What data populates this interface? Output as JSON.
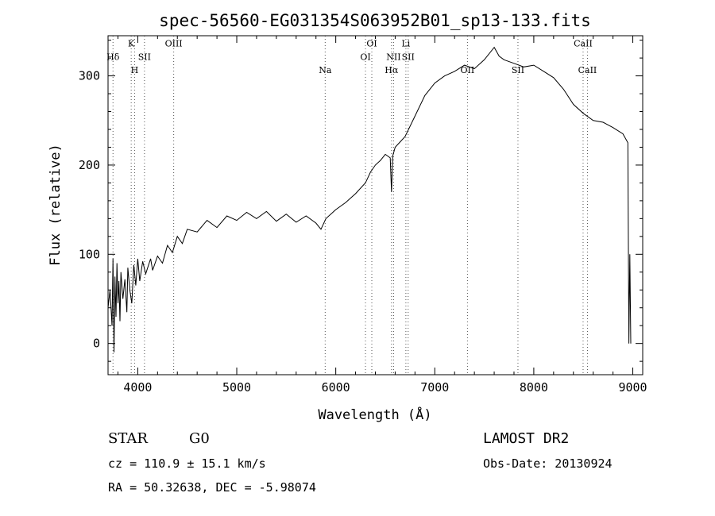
{
  "chart_data": {
    "type": "line",
    "title": "spec-56560-EG031354S063952B01_sp13-133.fits",
    "xlabel": "Wavelength (Å)",
    "ylabel": "Flux (relative)",
    "xlim": [
      3700,
      9100
    ],
    "ylim": [
      -35,
      345
    ],
    "xticks": [
      4000,
      5000,
      6000,
      7000,
      8000,
      9000
    ],
    "yticks": [
      0,
      100,
      200,
      300
    ],
    "grid": false,
    "series": [
      {
        "points": [
          [
            3700,
            40
          ],
          [
            3720,
            60
          ],
          [
            3740,
            20
          ],
          [
            3750,
            95
          ],
          [
            3760,
            -10
          ],
          [
            3770,
            75
          ],
          [
            3780,
            30
          ],
          [
            3790,
            90
          ],
          [
            3800,
            45
          ],
          [
            3810,
            70
          ],
          [
            3820,
            25
          ],
          [
            3830,
            80
          ],
          [
            3850,
            50
          ],
          [
            3870,
            72
          ],
          [
            3890,
            35
          ],
          [
            3900,
            85
          ],
          [
            3920,
            60
          ],
          [
            3940,
            45
          ],
          [
            3960,
            88
          ],
          [
            3980,
            65
          ],
          [
            4000,
            95
          ],
          [
            4020,
            70
          ],
          [
            4050,
            92
          ],
          [
            4080,
            78
          ],
          [
            4100,
            85
          ],
          [
            4130,
            95
          ],
          [
            4150,
            82
          ],
          [
            4200,
            98
          ],
          [
            4250,
            90
          ],
          [
            4300,
            110
          ],
          [
            4350,
            102
          ],
          [
            4400,
            120
          ],
          [
            4450,
            112
          ],
          [
            4500,
            128
          ],
          [
            4600,
            125
          ],
          [
            4700,
            138
          ],
          [
            4800,
            130
          ],
          [
            4900,
            143
          ],
          [
            5000,
            138
          ],
          [
            5100,
            147
          ],
          [
            5200,
            140
          ],
          [
            5300,
            148
          ],
          [
            5400,
            137
          ],
          [
            5500,
            145
          ],
          [
            5600,
            136
          ],
          [
            5700,
            143
          ],
          [
            5800,
            135
          ],
          [
            5850,
            128
          ],
          [
            5900,
            140
          ],
          [
            6000,
            150
          ],
          [
            6100,
            158
          ],
          [
            6200,
            168
          ],
          [
            6300,
            180
          ],
          [
            6350,
            192
          ],
          [
            6400,
            200
          ],
          [
            6450,
            205
          ],
          [
            6500,
            212
          ],
          [
            6550,
            208
          ],
          [
            6563,
            170
          ],
          [
            6575,
            210
          ],
          [
            6600,
            220
          ],
          [
            6700,
            232
          ],
          [
            6800,
            255
          ],
          [
            6900,
            278
          ],
          [
            7000,
            292
          ],
          [
            7100,
            300
          ],
          [
            7200,
            305
          ],
          [
            7300,
            312
          ],
          [
            7400,
            308
          ],
          [
            7500,
            318
          ],
          [
            7600,
            332
          ],
          [
            7650,
            322
          ],
          [
            7700,
            318
          ],
          [
            7800,
            314
          ],
          [
            7900,
            310
          ],
          [
            8000,
            312
          ],
          [
            8100,
            305
          ],
          [
            8200,
            298
          ],
          [
            8300,
            285
          ],
          [
            8400,
            268
          ],
          [
            8500,
            258
          ],
          [
            8600,
            250
          ],
          [
            8700,
            248
          ],
          [
            8800,
            242
          ],
          [
            8900,
            235
          ],
          [
            8950,
            225
          ],
          [
            8960,
            0
          ],
          [
            8970,
            100
          ],
          [
            8980,
            0
          ]
        ]
      }
    ],
    "lines": [
      {
        "label": "Hδ",
        "x": 3750,
        "label_y": 318,
        "row": "top"
      },
      {
        "label": "K",
        "x": 3934,
        "label_y": 333,
        "row": "top"
      },
      {
        "label": "H",
        "x": 3968,
        "label_y": 303,
        "row": "bottom"
      },
      {
        "label": "SII",
        "x": 4068,
        "label_y": 318,
        "row": "top"
      },
      {
        "label": "OIII",
        "x": 4363,
        "label_y": 333,
        "row": "top"
      },
      {
        "label": "Na",
        "x": 5893,
        "label_y": 303,
        "row": "bottom"
      },
      {
        "label": "OI",
        "x": 6300,
        "label_y": 318,
        "row": "top"
      },
      {
        "label": "OI",
        "x": 6364,
        "label_y": 333,
        "row": "top"
      },
      {
        "label": "Hα",
        "x": 6563,
        "label_y": 303,
        "row": "bottom"
      },
      {
        "label": "NII",
        "x": 6584,
        "label_y": 318,
        "row": "top"
      },
      {
        "label": "Li",
        "x": 6708,
        "label_y": 333,
        "row": "top"
      },
      {
        "label": "SII",
        "x": 6731,
        "label_y": 318,
        "row": "top"
      },
      {
        "label": "OII",
        "x": 7330,
        "label_y": 303,
        "row": "bottom"
      },
      {
        "label": "SII",
        "x": 7840,
        "label_y": 303,
        "row": "bottom"
      },
      {
        "label": "CaII",
        "x": 8498,
        "label_y": 333,
        "row": "top"
      },
      {
        "label": "CaII",
        "x": 8542,
        "label_y": 303,
        "row": "bottom"
      }
    ]
  },
  "footer": {
    "object": "STAR",
    "subclass": "G0",
    "survey": "LAMOST DR2",
    "cz": "cz = 110.9 ± 15.1 km/s",
    "obs_date": "Obs-Date: 20130924",
    "coords": "RA =  50.32638, DEC =  -5.98074"
  }
}
